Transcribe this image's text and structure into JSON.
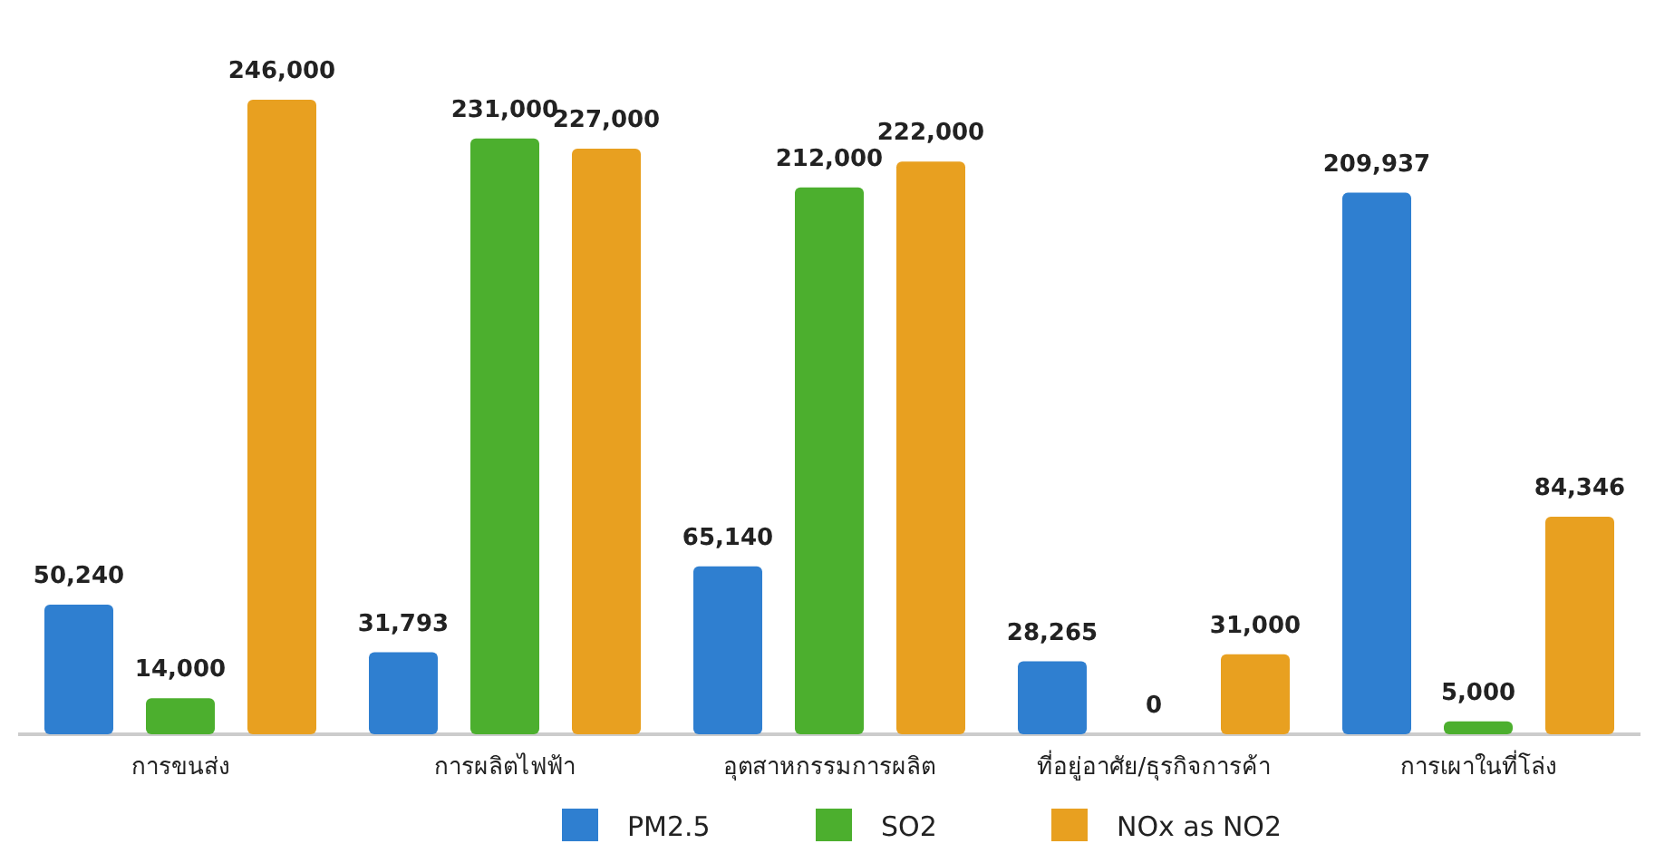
{
  "chart_data": {
    "type": "bar",
    "categories": [
      "การขนส่ง",
      "การผลิตไฟฟ้า",
      "อุตสาหกรรมการผลิต",
      "ที่อยู่อาศัย/ธุรกิจการค้า",
      "การเผาในที่โล่ง"
    ],
    "series": [
      {
        "name": "PM2.5",
        "color": "#2f7fd0",
        "values": [
          50240,
          31793,
          65140,
          28265,
          209937
        ],
        "value_labels": [
          "50,240",
          "31,793",
          "65,140",
          "28,265",
          "209,937"
        ]
      },
      {
        "name": "SO2",
        "color": "#4caf2e",
        "values": [
          14000,
          231000,
          212000,
          0,
          5000
        ],
        "value_labels": [
          "14,000",
          "231,000",
          "212,000",
          "0",
          "5,000"
        ]
      },
      {
        "name": "NOx as NO2",
        "color": "#e8a020",
        "values": [
          246000,
          227000,
          222000,
          31000,
          84346
        ],
        "value_labels": [
          "246,000",
          "227,000",
          "222,000",
          "31,000",
          "84,346"
        ]
      }
    ],
    "legend": "bottom"
  }
}
